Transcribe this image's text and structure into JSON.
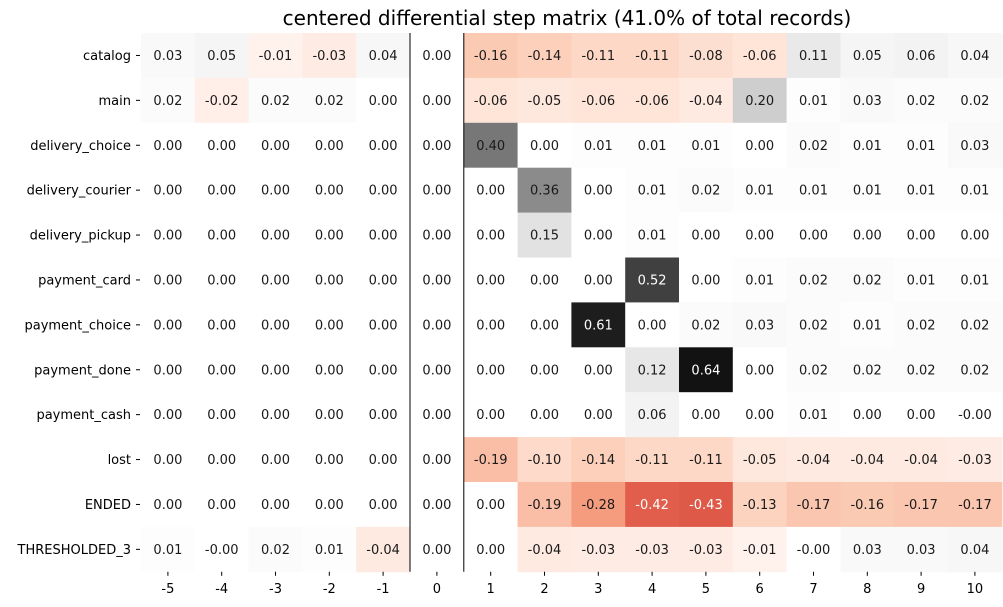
{
  "chart_data": {
    "type": "heatmap",
    "title": "centered differential step matrix (41.0% of total records)",
    "x": [
      "-5",
      "-4",
      "-3",
      "-2",
      "-1",
      "0",
      "1",
      "2",
      "3",
      "4",
      "5",
      "6",
      "7",
      "8",
      "9",
      "10"
    ],
    "y": [
      "catalog",
      "main",
      "delivery_choice",
      "delivery_courier",
      "delivery_pickup",
      "payment_card",
      "payment_choice",
      "payment_done",
      "payment_cash",
      "lost",
      "ENDED",
      "THRESHOLDED_3"
    ],
    "labels": [
      [
        "0.03",
        "0.05",
        "-0.01",
        "-0.03",
        "0.04",
        "0.00",
        "-0.16",
        "-0.14",
        "-0.11",
        "-0.11",
        "-0.08",
        "-0.06",
        "0.11",
        "0.05",
        "0.06",
        "0.04"
      ],
      [
        "0.02",
        "-0.02",
        "0.02",
        "0.02",
        "0.00",
        "0.00",
        "-0.06",
        "-0.05",
        "-0.06",
        "-0.06",
        "-0.04",
        "0.20",
        "0.01",
        "0.03",
        "0.02",
        "0.02"
      ],
      [
        "0.00",
        "0.00",
        "0.00",
        "0.00",
        "0.00",
        "0.00",
        "0.40",
        "0.00",
        "0.01",
        "0.01",
        "0.01",
        "0.00",
        "0.02",
        "0.01",
        "0.01",
        "0.03"
      ],
      [
        "0.00",
        "0.00",
        "0.00",
        "0.00",
        "0.00",
        "0.00",
        "0.00",
        "0.36",
        "0.00",
        "0.01",
        "0.02",
        "0.01",
        "0.01",
        "0.01",
        "0.01",
        "0.01"
      ],
      [
        "0.00",
        "0.00",
        "0.00",
        "0.00",
        "0.00",
        "0.00",
        "0.00",
        "0.15",
        "0.00",
        "0.01",
        "0.00",
        "0.00",
        "0.00",
        "0.00",
        "0.00",
        "0.00"
      ],
      [
        "0.00",
        "0.00",
        "0.00",
        "0.00",
        "0.00",
        "0.00",
        "0.00",
        "0.00",
        "0.00",
        "0.52",
        "0.00",
        "0.01",
        "0.02",
        "0.02",
        "0.01",
        "0.01"
      ],
      [
        "0.00",
        "0.00",
        "0.00",
        "0.00",
        "0.00",
        "0.00",
        "0.00",
        "0.00",
        "0.61",
        "0.00",
        "0.02",
        "0.03",
        "0.02",
        "0.01",
        "0.02",
        "0.02"
      ],
      [
        "0.00",
        "0.00",
        "0.00",
        "0.00",
        "0.00",
        "0.00",
        "0.00",
        "0.00",
        "0.00",
        "0.12",
        "0.64",
        "0.00",
        "0.02",
        "0.02",
        "0.02",
        "0.02"
      ],
      [
        "0.00",
        "0.00",
        "0.00",
        "0.00",
        "0.00",
        "0.00",
        "0.00",
        "0.00",
        "0.00",
        "0.06",
        "0.00",
        "0.00",
        "0.01",
        "0.00",
        "0.00",
        "-0.00"
      ],
      [
        "0.00",
        "0.00",
        "0.00",
        "0.00",
        "0.00",
        "0.00",
        "-0.19",
        "-0.10",
        "-0.14",
        "-0.11",
        "-0.11",
        "-0.05",
        "-0.04",
        "-0.04",
        "-0.04",
        "-0.03"
      ],
      [
        "0.00",
        "0.00",
        "0.00",
        "0.00",
        "0.00",
        "0.00",
        "0.00",
        "-0.19",
        "-0.28",
        "-0.42",
        "-0.43",
        "-0.13",
        "-0.17",
        "-0.16",
        "-0.17",
        "-0.17"
      ],
      [
        "0.01",
        "-0.00",
        "0.02",
        "0.01",
        "-0.04",
        "0.00",
        "0.00",
        "-0.04",
        "-0.03",
        "-0.03",
        "-0.03",
        "-0.01",
        "-0.00",
        "0.03",
        "0.03",
        "0.04"
      ]
    ],
    "colormap": {
      "positive": "greys",
      "negative": "reds"
    },
    "separators_after_columns": [
      "-1",
      "0"
    ],
    "grid": false,
    "legend": "none"
  }
}
